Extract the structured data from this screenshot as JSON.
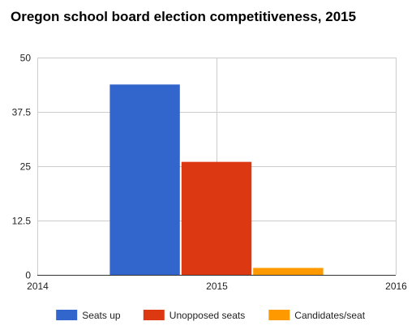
{
  "chart_data": {
    "type": "bar",
    "title": "Oregon school board election competitiveness, 2015",
    "x_ticks": [
      "2014",
      "2015",
      "2016"
    ],
    "x_range": [
      2014,
      2016
    ],
    "categories": [
      "2015"
    ],
    "series": [
      {
        "name": "Seats up",
        "values": [
          43.8
        ],
        "color": "#3366cc"
      },
      {
        "name": "Unopposed seats",
        "values": [
          26
        ],
        "color": "#dc3912"
      },
      {
        "name": "Candidates/seat",
        "values": [
          1.6
        ],
        "color": "#ff9900"
      }
    ],
    "ylim": [
      0,
      50
    ],
    "y_ticks": [
      "0",
      "12.5",
      "25",
      "37.5",
      "50"
    ],
    "y_tick_values": [
      0,
      12.5,
      25,
      37.5,
      50
    ],
    "grid": true,
    "legend_position": "bottom"
  }
}
